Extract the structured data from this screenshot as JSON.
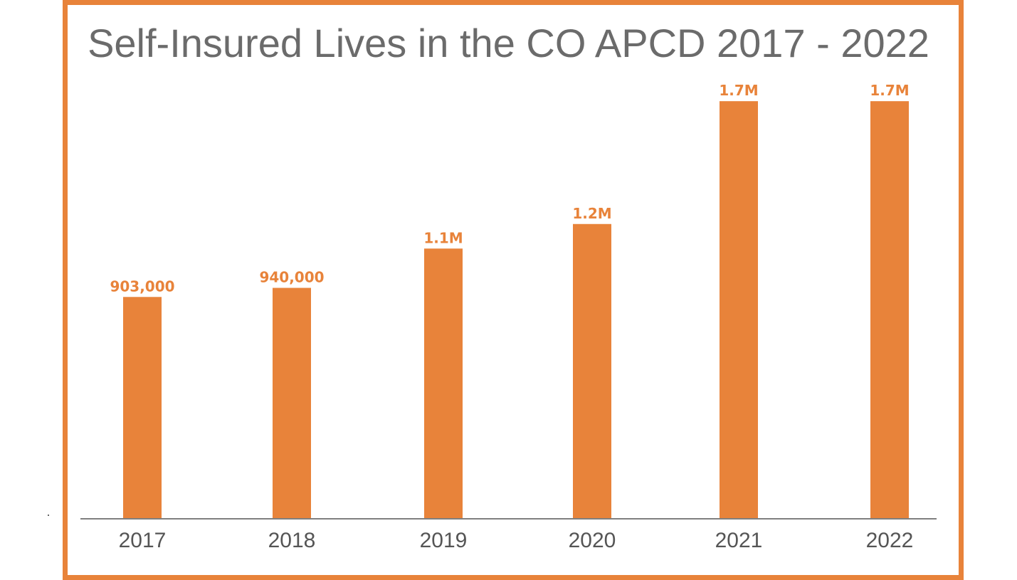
{
  "chart_data": {
    "type": "bar",
    "title": "Self-Insured Lives in the CO APCD 2017 - 2022",
    "xlabel": "",
    "ylabel": "",
    "categories": [
      "2017",
      "2018",
      "2019",
      "2020",
      "2021",
      "2022"
    ],
    "values": [
      903000,
      940000,
      1100000,
      1200000,
      1700000,
      1700000
    ],
    "data_labels": [
      "903,000",
      "940,000",
      "1.1M",
      "1.2M",
      "1.7M",
      "1.7M"
    ],
    "ylim": [
      0,
      1770000
    ],
    "grid": false,
    "legend": "none",
    "bar_color": "#E8833A",
    "frame_color": "#E8833A",
    "axis_color": "#7F7F7F"
  }
}
